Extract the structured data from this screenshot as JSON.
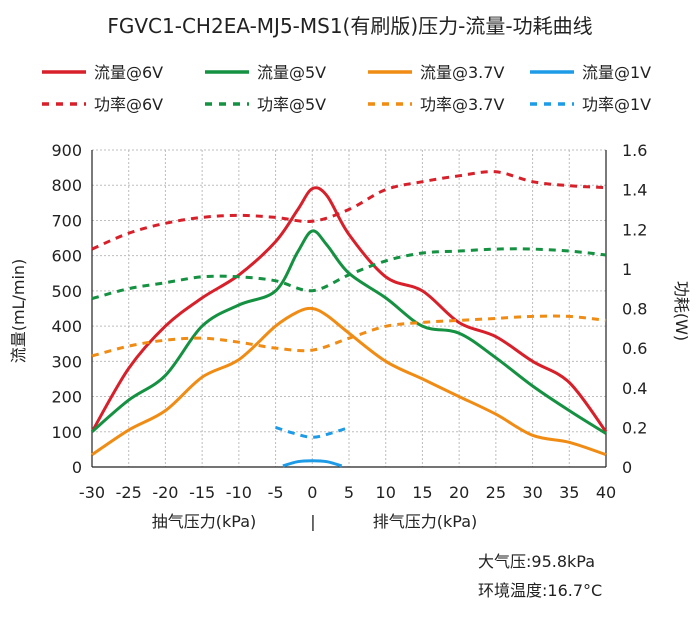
{
  "chart_data": {
    "type": "line",
    "title": "FGVC1-CH2EA-MJ5-MS1(有刷版)压力-流量-功耗曲线",
    "xlabel_left": "抽气压力(kPa)",
    "xlabel_sep": "|",
    "xlabel_right": "排气压力(kPa)",
    "ylabel_left": "流量(mL/min)",
    "ylabel_right": "功耗(W)",
    "xlim": [
      -30,
      40
    ],
    "ylim_left": [
      0,
      900
    ],
    "ylim_right": [
      0,
      1.6
    ],
    "x_ticks": [
      "-30",
      "-25",
      "-20",
      "-15",
      "-10",
      "-5",
      "0",
      "5",
      "10",
      "15",
      "20",
      "25",
      "30",
      "35",
      "40"
    ],
    "y_left_ticks": [
      "0",
      "100",
      "200",
      "300",
      "400",
      "500",
      "600",
      "700",
      "800",
      "900"
    ],
    "y_right_ticks": [
      "0",
      "0.2",
      "0.4",
      "0.6",
      "0.8",
      "1",
      "1.2",
      "1.4",
      "1.6"
    ],
    "grid": true,
    "legend_position": "top",
    "series": [
      {
        "name": "流量@6V",
        "axis": "left",
        "style": "solid",
        "color": "#d7202a",
        "x": [
          -30,
          -25,
          -20,
          -15,
          -10,
          -5,
          -2,
          0,
          2,
          5,
          10,
          15,
          20,
          25,
          30,
          35,
          40
        ],
        "values": [
          100,
          280,
          400,
          480,
          545,
          640,
          730,
          790,
          770,
          660,
          540,
          500,
          410,
          370,
          300,
          240,
          100
        ]
      },
      {
        "name": "流量@5V",
        "axis": "left",
        "style": "solid",
        "color": "#149141",
        "x": [
          -30,
          -25,
          -20,
          -15,
          -10,
          -5,
          -2,
          0,
          2,
          5,
          10,
          15,
          20,
          25,
          30,
          35,
          40
        ],
        "values": [
          100,
          190,
          260,
          400,
          460,
          500,
          610,
          670,
          630,
          550,
          480,
          400,
          380,
          310,
          230,
          160,
          95
        ]
      },
      {
        "name": "流量@3.7V",
        "axis": "left",
        "style": "solid",
        "color": "#f08c14",
        "x": [
          -30,
          -25,
          -20,
          -15,
          -10,
          -5,
          -2,
          0,
          2,
          5,
          10,
          15,
          20,
          25,
          30,
          35,
          40
        ],
        "values": [
          35,
          105,
          160,
          255,
          305,
          400,
          440,
          450,
          430,
          380,
          300,
          250,
          200,
          150,
          90,
          70,
          35
        ]
      },
      {
        "name": "流量@1V",
        "axis": "left",
        "style": "solid",
        "color": "#1e9be6",
        "x": [
          -4,
          -2,
          0,
          2,
          4
        ],
        "values": [
          3,
          15,
          18,
          15,
          3
        ]
      },
      {
        "name": "功率@6V",
        "axis": "right",
        "style": "dashed",
        "color": "#d7202a",
        "x": [
          -30,
          -25,
          -20,
          -15,
          -10,
          -5,
          0,
          5,
          10,
          15,
          20,
          25,
          30,
          35,
          40
        ],
        "values": [
          1.1,
          1.18,
          1.23,
          1.26,
          1.27,
          1.26,
          1.24,
          1.3,
          1.4,
          1.44,
          1.47,
          1.49,
          1.44,
          1.42,
          1.41
        ]
      },
      {
        "name": "功率@5V",
        "axis": "right",
        "style": "dashed",
        "color": "#149141",
        "x": [
          -30,
          -25,
          -20,
          -15,
          -10,
          -5,
          0,
          5,
          10,
          15,
          20,
          25,
          30,
          35,
          40
        ],
        "values": [
          0.85,
          0.9,
          0.93,
          0.96,
          0.96,
          0.94,
          0.89,
          0.97,
          1.04,
          1.08,
          1.09,
          1.1,
          1.1,
          1.09,
          1.07
        ]
      },
      {
        "name": "功率@3.7V",
        "axis": "right",
        "style": "dashed",
        "color": "#f08c14",
        "x": [
          -30,
          -25,
          -20,
          -15,
          -10,
          -5,
          0,
          5,
          10,
          15,
          20,
          25,
          30,
          35,
          40
        ],
        "values": [
          0.56,
          0.61,
          0.64,
          0.65,
          0.63,
          0.6,
          0.59,
          0.65,
          0.71,
          0.73,
          0.74,
          0.75,
          0.76,
          0.76,
          0.74
        ]
      },
      {
        "name": "功率@1V",
        "axis": "right",
        "style": "dashed",
        "color": "#1e9be6",
        "x": [
          -5,
          -2.5,
          0,
          2.5,
          5
        ],
        "values": [
          0.2,
          0.17,
          0.15,
          0.17,
          0.2
        ]
      }
    ],
    "annotations": [
      "大气压:95.8kPa",
      "环境温度:16.7°C"
    ]
  }
}
